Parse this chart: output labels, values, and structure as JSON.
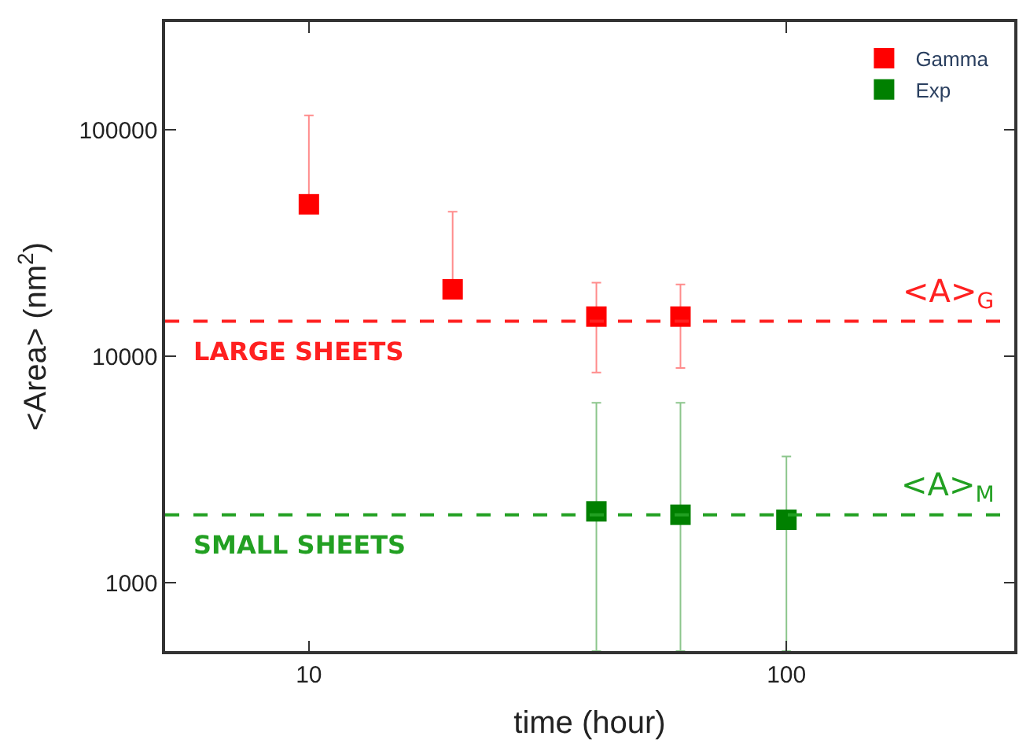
{
  "chart_data": {
    "type": "scatter",
    "xlabel": "time (hour)",
    "ylabel": "<Area> (nm$^{2}$)",
    "log": "xy",
    "xlim": [
      5,
      300
    ],
    "ylim": [
      500,
      300000
    ],
    "xticks": [
      10,
      100
    ],
    "yticks": [
      1000,
      10000,
      100000
    ],
    "marker": "square",
    "legend": "top right",
    "series": [
      {
        "name": "Gamma",
        "color": "#ff0000",
        "x": [
          10,
          20,
          40,
          60
        ],
        "values": [
          47000,
          19800,
          15000,
          15000
        ],
        "errors": [
          [
            47000,
            116000
          ],
          [
            19800,
            43600
          ],
          [
            8500,
            21200
          ],
          [
            8900,
            20800
          ]
        ]
      },
      {
        "name": "Exp",
        "color": "#008000",
        "x": [
          40,
          60,
          100
        ],
        "values": [
          2070,
          2000,
          1900
        ],
        "errors": [
          [
            500,
            6250
          ],
          [
            500,
            6250
          ],
          [
            500,
            3620
          ]
        ]
      }
    ],
    "ref_lines": [
      {
        "axis": "y",
        "value": 14300,
        "label": "<A>$_{G}$",
        "color": "#ff2020",
        "line_style": "dashed"
      },
      {
        "axis": "y",
        "value": 2000,
        "label": "<A>$_{M}$",
        "color": "#22a022",
        "line_style": "dashed"
      }
    ],
    "annotations": [
      "LARGE SHEETS",
      "SMALL SHEETS"
    ]
  }
}
